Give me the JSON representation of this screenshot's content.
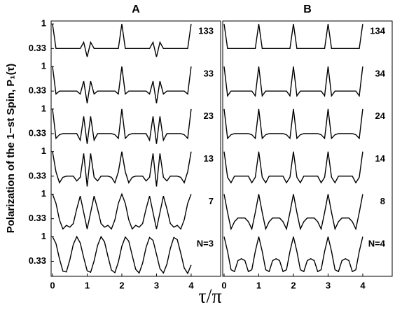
{
  "chart_data": [
    {
      "type": "line",
      "title": "A",
      "ylabel": "Polarization of the 1−st Spin,  P₁(τ)",
      "xlabel": "τ/π",
      "color": "#000000",
      "x": [
        0,
        0.1,
        0.2,
        0.3,
        0.4,
        0.5,
        0.6,
        0.7,
        0.8,
        0.9,
        1,
        1.1,
        1.2,
        1.3,
        1.4,
        1.5,
        1.6,
        1.7,
        1.8,
        1.9,
        2,
        2.1,
        2.2,
        2.3,
        2.4,
        2.5,
        2.6,
        2.7,
        2.8,
        2.9,
        3,
        3.1,
        3.2,
        3.3,
        3.4,
        3.5,
        3.6,
        3.7,
        3.8,
        3.9,
        4
      ],
      "xlim": [
        -0.04,
        4.85
      ],
      "xticks": [
        0,
        1,
        2,
        3,
        4
      ],
      "ylim": [
        -0.08,
        1.08
      ],
      "yticks": [
        1,
        0.33
      ],
      "series": [
        {
          "name": "N=3",
          "values": [
            1,
            0.815,
            0.4,
            0.06,
            0.04,
            0.37,
            0.79,
            1,
            0.83,
            0.43,
            0.07,
            0.03,
            0.34,
            0.76,
            1,
            0.86,
            0.46,
            0.09,
            0.02,
            0.31,
            0.74,
            0.99,
            0.88,
            0.49,
            0.11,
            0.01,
            0.28,
            0.71,
            0.98,
            0.9,
            0.52,
            0.13,
            0.01,
            0.25,
            0.68,
            0.98,
            0.92,
            0.55,
            0.15,
            0,
            0.23
          ]
        },
        {
          "name": "7",
          "values": [
            1,
            0.75,
            0.3,
            0.05,
            0.15,
            0.1,
            0.2,
            0.6,
            0.95,
            0.5,
            0.05,
            0.5,
            0.95,
            0.6,
            0.2,
            0.1,
            0.15,
            0.05,
            0.3,
            0.75,
            1,
            0.75,
            0.3,
            0.05,
            0.15,
            0.1,
            0.2,
            0.6,
            0.95,
            0.5,
            0.05,
            0.5,
            0.95,
            0.6,
            0.2,
            0.1,
            0.15,
            0.05,
            0.3,
            0.75,
            1
          ]
        },
        {
          "name": "13",
          "values": [
            1,
            0.45,
            0.15,
            0.3,
            0.33,
            0.33,
            0.33,
            0.2,
            0.3,
            0.95,
            0.05,
            0.95,
            0.3,
            0.2,
            0.33,
            0.33,
            0.33,
            0.3,
            0.15,
            0.45,
            1,
            0.45,
            0.15,
            0.3,
            0.33,
            0.33,
            0.33,
            0.2,
            0.3,
            0.95,
            0.05,
            0.95,
            0.3,
            0.2,
            0.33,
            0.33,
            0.33,
            0.3,
            0.15,
            0.45,
            1
          ]
        },
        {
          "name": "23",
          "values": [
            1,
            0.2,
            0.3,
            0.33,
            0.33,
            0.33,
            0.33,
            0.33,
            0.15,
            0.8,
            0.05,
            0.8,
            0.15,
            0.33,
            0.33,
            0.33,
            0.33,
            0.33,
            0.3,
            0.2,
            1,
            0.2,
            0.3,
            0.33,
            0.33,
            0.33,
            0.33,
            0.33,
            0.15,
            0.8,
            0.05,
            0.8,
            0.15,
            0.33,
            0.33,
            0.33,
            0.33,
            0.33,
            0.3,
            0.2,
            1
          ]
        },
        {
          "name": "33",
          "values": [
            1,
            0.25,
            0.33,
            0.33,
            0.33,
            0.33,
            0.33,
            0.33,
            0.25,
            0.6,
            0,
            0.6,
            0.25,
            0.33,
            0.33,
            0.33,
            0.33,
            0.33,
            0.33,
            0.25,
            1,
            0.25,
            0.33,
            0.33,
            0.33,
            0.33,
            0.33,
            0.33,
            0.25,
            0.6,
            0,
            0.6,
            0.25,
            0.33,
            0.33,
            0.33,
            0.33,
            0.33,
            0.33,
            0.25,
            1
          ]
        },
        {
          "name": "133",
          "values": [
            1,
            0.33,
            0.33,
            0.33,
            0.33,
            0.33,
            0.33,
            0.33,
            0.33,
            0.5,
            0.1,
            0.5,
            0.33,
            0.33,
            0.33,
            0.33,
            0.33,
            0.33,
            0.33,
            0.33,
            1,
            0.33,
            0.33,
            0.33,
            0.33,
            0.33,
            0.33,
            0.33,
            0.33,
            0.5,
            0.1,
            0.5,
            0.33,
            0.33,
            0.33,
            0.33,
            0.33,
            0.33,
            0.33,
            0.33,
            1
          ]
        }
      ]
    },
    {
      "type": "line",
      "title": "B",
      "color": "#000000",
      "x": [
        0,
        0.1,
        0.2,
        0.3,
        0.4,
        0.5,
        0.6,
        0.7,
        0.8,
        0.9,
        1,
        1.1,
        1.2,
        1.3,
        1.4,
        1.5,
        1.6,
        1.7,
        1.8,
        1.9,
        2,
        2.1,
        2.2,
        2.3,
        2.4,
        2.5,
        2.6,
        2.7,
        2.8,
        2.9,
        3,
        3.1,
        3.2,
        3.3,
        3.4,
        3.5,
        3.6,
        3.7,
        3.8,
        3.9,
        4
      ],
      "xlim": [
        -0.04,
        4.85
      ],
      "xticks": [
        0,
        1,
        2,
        3,
        4
      ],
      "ylim": [
        -0.08,
        1.08
      ],
      "series": [
        {
          "name": "N=4",
          "values": [
            1,
            0.6,
            0.1,
            0.05,
            0.35,
            0.4,
            0.35,
            0.05,
            0.1,
            0.6,
            1,
            0.6,
            0.1,
            0.05,
            0.35,
            0.4,
            0.35,
            0.05,
            0.1,
            0.6,
            1,
            0.6,
            0.1,
            0.05,
            0.35,
            0.4,
            0.35,
            0.05,
            0.1,
            0.6,
            1,
            0.6,
            0.1,
            0.05,
            0.35,
            0.4,
            0.35,
            0.05,
            0.1,
            0.6,
            1
          ]
        },
        {
          "name": "8",
          "values": [
            1,
            0.5,
            0.05,
            0.25,
            0.35,
            0.35,
            0.35,
            0.25,
            0.05,
            0.5,
            1,
            0.5,
            0.05,
            0.25,
            0.35,
            0.35,
            0.35,
            0.25,
            0.05,
            0.5,
            1,
            0.5,
            0.05,
            0.25,
            0.35,
            0.35,
            0.35,
            0.25,
            0.05,
            0.5,
            1,
            0.5,
            0.05,
            0.25,
            0.35,
            0.35,
            0.35,
            0.25,
            0.05,
            0.5,
            1
          ]
        },
        {
          "name": "14",
          "values": [
            1,
            0.3,
            0.15,
            0.33,
            0.33,
            0.33,
            0.33,
            0.33,
            0.15,
            0.3,
            1,
            0.3,
            0.15,
            0.33,
            0.33,
            0.33,
            0.33,
            0.33,
            0.15,
            0.3,
            1,
            0.3,
            0.15,
            0.33,
            0.33,
            0.33,
            0.33,
            0.33,
            0.15,
            0.3,
            1,
            0.3,
            0.15,
            0.33,
            0.33,
            0.33,
            0.33,
            0.33,
            0.15,
            0.3,
            1
          ]
        },
        {
          "name": "24",
          "values": [
            1,
            0.2,
            0.3,
            0.33,
            0.33,
            0.33,
            0.33,
            0.33,
            0.3,
            0.2,
            1,
            0.2,
            0.3,
            0.33,
            0.33,
            0.33,
            0.33,
            0.33,
            0.3,
            0.2,
            1,
            0.2,
            0.3,
            0.33,
            0.33,
            0.33,
            0.33,
            0.33,
            0.3,
            0.2,
            1,
            0.2,
            0.3,
            0.33,
            0.33,
            0.33,
            0.33,
            0.33,
            0.3,
            0.2,
            1
          ]
        },
        {
          "name": "34",
          "values": [
            1,
            0.2,
            0.33,
            0.33,
            0.33,
            0.33,
            0.33,
            0.33,
            0.33,
            0.2,
            1,
            0.2,
            0.33,
            0.33,
            0.33,
            0.33,
            0.33,
            0.33,
            0.33,
            0.2,
            1,
            0.2,
            0.33,
            0.33,
            0.33,
            0.33,
            0.33,
            0.33,
            0.33,
            0.2,
            1,
            0.2,
            0.33,
            0.33,
            0.33,
            0.33,
            0.33,
            0.33,
            0.33,
            0.2,
            1
          ]
        },
        {
          "name": "134",
          "values": [
            1,
            0.33,
            0.33,
            0.33,
            0.33,
            0.33,
            0.33,
            0.33,
            0.33,
            0.33,
            1,
            0.33,
            0.33,
            0.33,
            0.33,
            0.33,
            0.33,
            0.33,
            0.33,
            0.33,
            1,
            0.33,
            0.33,
            0.33,
            0.33,
            0.33,
            0.33,
            0.33,
            0.33,
            0.33,
            1,
            0.33,
            0.33,
            0.33,
            0.33,
            0.33,
            0.33,
            0.33,
            0.33,
            0.33,
            1
          ]
        }
      ]
    }
  ]
}
